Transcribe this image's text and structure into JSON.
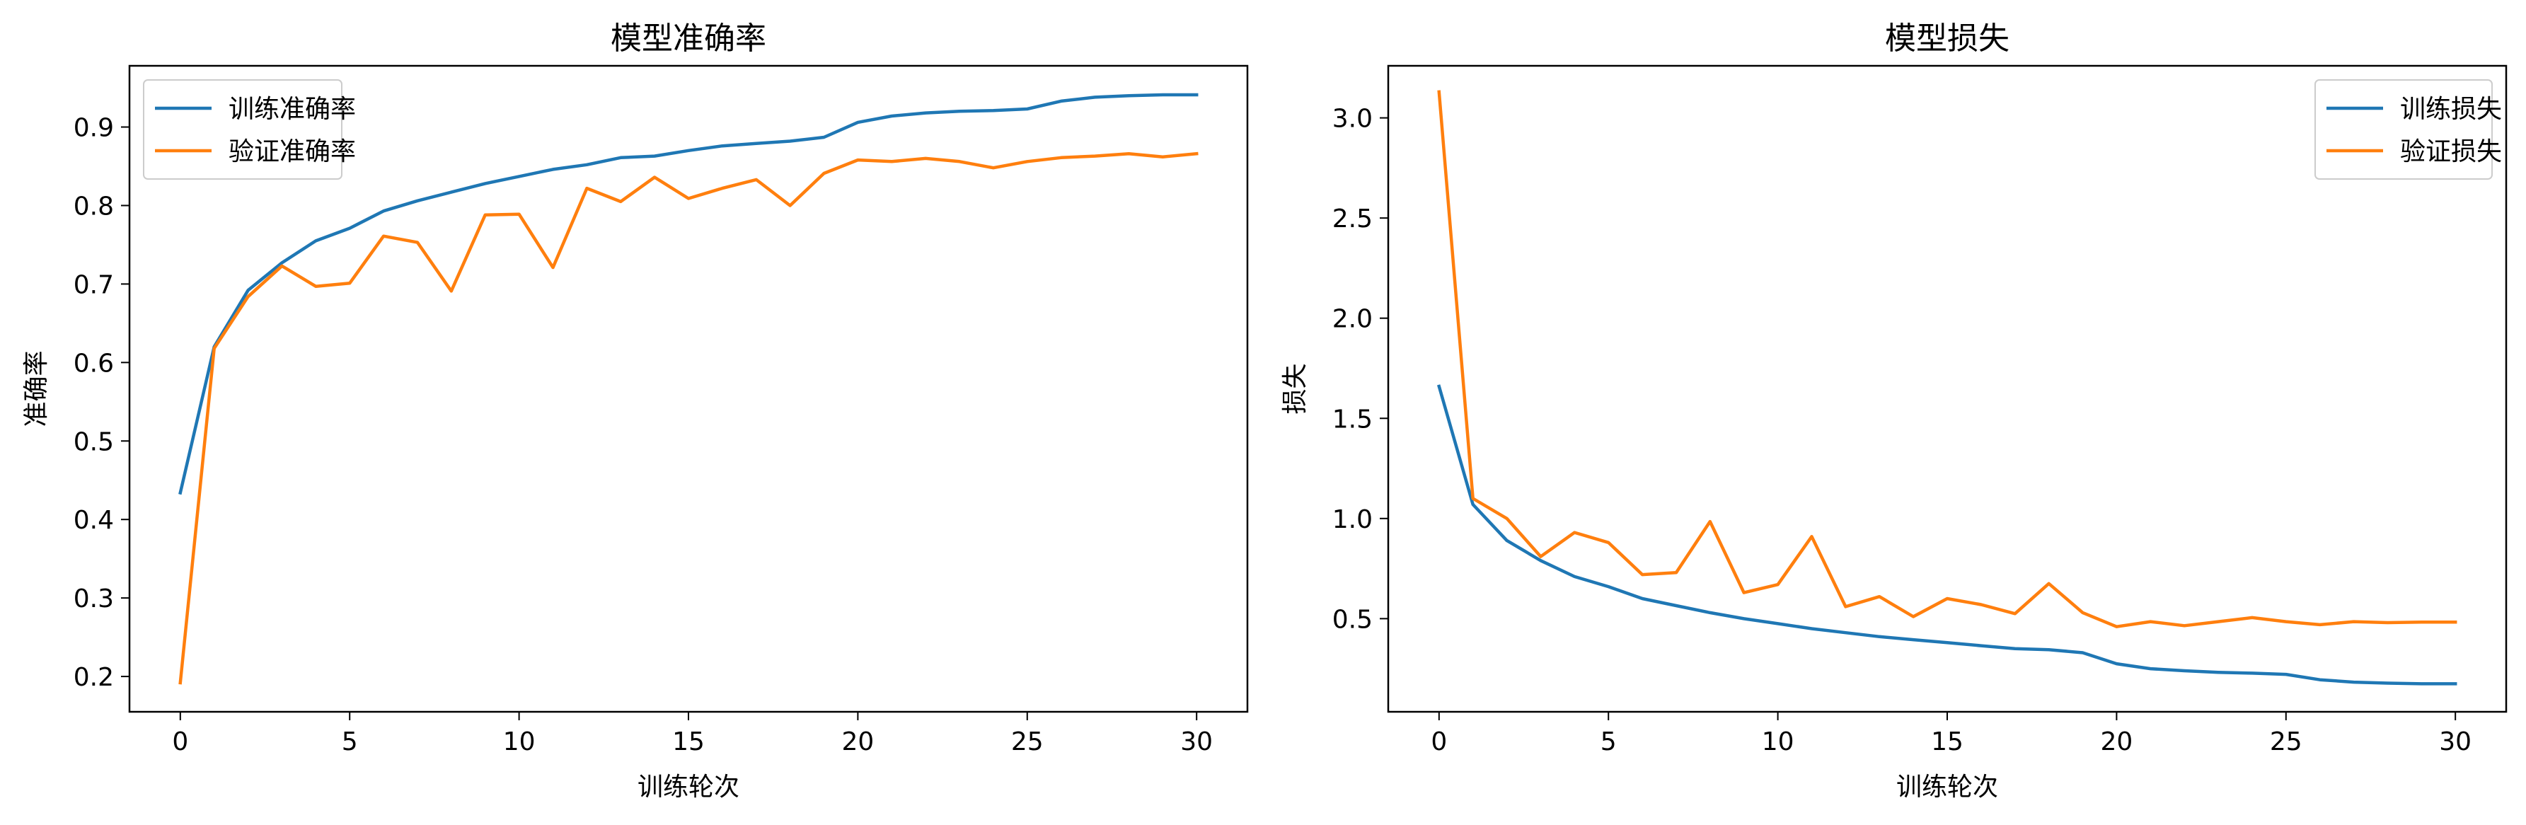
{
  "colors": {
    "series_a": "#1f77b4",
    "series_b": "#ff7f0e"
  },
  "chart_data": [
    {
      "type": "line",
      "title": "模型准确率",
      "xlabel": "训练轮次",
      "ylabel": "准确率",
      "xlim": [
        -1.5,
        31.5
      ],
      "ylim": [
        0.155,
        0.978
      ],
      "xticks": [
        0,
        5,
        10,
        15,
        20,
        25,
        30
      ],
      "yticks": [
        0.2,
        0.3,
        0.4,
        0.5,
        0.6,
        0.7,
        0.8,
        0.9
      ],
      "legend": "upper left",
      "x": [
        0,
        1,
        2,
        3,
        4,
        5,
        6,
        7,
        8,
        9,
        10,
        11,
        12,
        13,
        14,
        15,
        16,
        17,
        18,
        19,
        20,
        21,
        22,
        23,
        24,
        25,
        26,
        27,
        28,
        29,
        30
      ],
      "series": [
        {
          "name": "训练准确率",
          "color": "#1f77b4",
          "values": [
            0.434,
            0.62,
            0.692,
            0.727,
            0.755,
            0.771,
            0.793,
            0.806,
            0.817,
            0.828,
            0.837,
            0.846,
            0.852,
            0.861,
            0.863,
            0.87,
            0.876,
            0.879,
            0.882,
            0.887,
            0.906,
            0.914,
            0.918,
            0.92,
            0.921,
            0.923,
            0.933,
            0.938,
            0.94,
            0.941,
            0.941
          ]
        },
        {
          "name": "验证准确率",
          "color": "#ff7f0e",
          "values": [
            0.192,
            0.618,
            0.684,
            0.723,
            0.697,
            0.701,
            0.761,
            0.753,
            0.691,
            0.788,
            0.789,
            0.721,
            0.822,
            0.805,
            0.836,
            0.809,
            0.822,
            0.833,
            0.8,
            0.841,
            0.858,
            0.856,
            0.86,
            0.856,
            0.848,
            0.856,
            0.861,
            0.863,
            0.866,
            0.862,
            0.866
          ]
        }
      ]
    },
    {
      "type": "line",
      "title": "模型损失",
      "xlabel": "训练轮次",
      "ylabel": "损失",
      "xlim": [
        -1.5,
        31.5
      ],
      "ylim": [
        0.035,
        3.26
      ],
      "xticks": [
        0,
        5,
        10,
        15,
        20,
        25,
        30
      ],
      "yticks": [
        0.5,
        1.0,
        1.5,
        2.0,
        2.5,
        3.0
      ],
      "legend": "upper right",
      "x": [
        0,
        1,
        2,
        3,
        4,
        5,
        6,
        7,
        8,
        9,
        10,
        11,
        12,
        13,
        14,
        15,
        16,
        17,
        18,
        19,
        20,
        21,
        22,
        23,
        24,
        25,
        26,
        27,
        28,
        29,
        30
      ],
      "series": [
        {
          "name": "训练损失",
          "color": "#1f77b4",
          "values": [
            1.66,
            1.07,
            0.89,
            0.79,
            0.71,
            0.66,
            0.6,
            0.565,
            0.53,
            0.5,
            0.475,
            0.45,
            0.43,
            0.41,
            0.395,
            0.38,
            0.365,
            0.35,
            0.345,
            0.33,
            0.275,
            0.25,
            0.24,
            0.232,
            0.228,
            0.222,
            0.195,
            0.183,
            0.178,
            0.175,
            0.175
          ]
        },
        {
          "name": "验证损失",
          "color": "#ff7f0e",
          "values": [
            3.13,
            1.1,
            1.0,
            0.81,
            0.93,
            0.88,
            0.72,
            0.73,
            0.985,
            0.63,
            0.67,
            0.91,
            0.56,
            0.61,
            0.51,
            0.6,
            0.57,
            0.525,
            0.675,
            0.53,
            0.46,
            0.485,
            0.465,
            0.485,
            0.505,
            0.485,
            0.47,
            0.485,
            0.48,
            0.483,
            0.483
          ]
        }
      ]
    }
  ]
}
